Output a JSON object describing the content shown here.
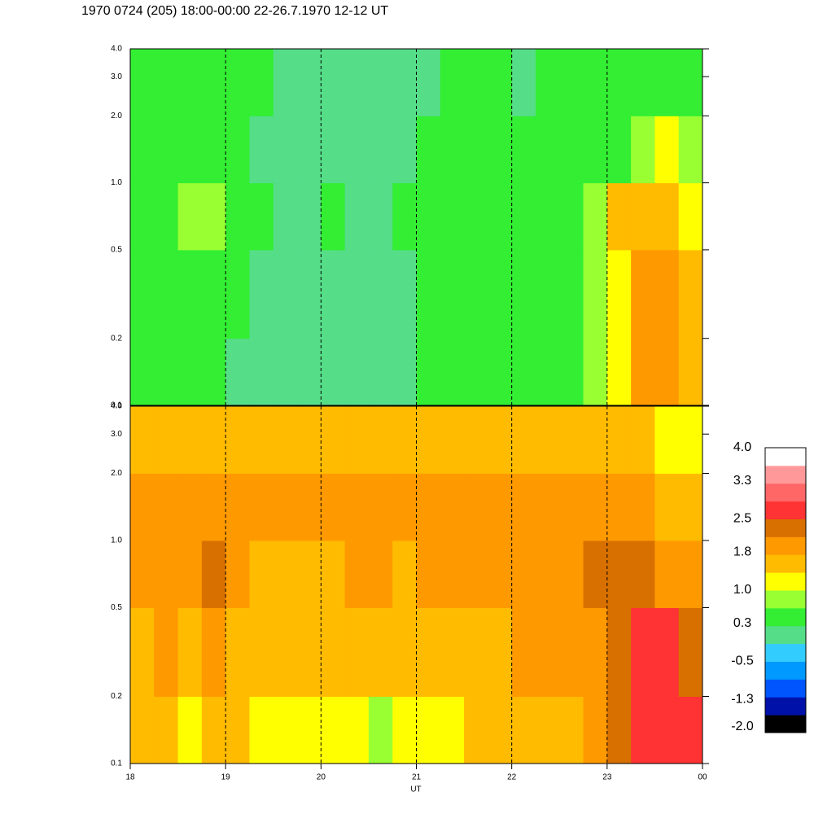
{
  "chart_data": {
    "type": "heatmap",
    "title": "1970 0724 (205) 18:00-00:00 22-26.7.1970  12-12 UT",
    "x_label": "UT",
    "xlim": [
      18,
      24
    ],
    "xticks": [
      18,
      19,
      20,
      21,
      22,
      23,
      {
        "value": 24,
        "label": "00"
      }
    ],
    "ylim": [
      0.1,
      4.0
    ],
    "log_y": true,
    "yticks": [
      0.1,
      0.2,
      0.5,
      {
        "value": 1,
        "label": "1.0"
      },
      {
        "value": 2,
        "label": "2.0"
      },
      {
        "value": 3,
        "label": "3.0"
      },
      {
        "value": 4,
        "label": "4.0"
      }
    ],
    "grid": true,
    "x_bins": [
      18,
      18.25,
      18.5,
      18.75,
      19,
      19.25,
      19.5,
      19.75,
      20,
      20.25,
      20.5,
      20.75,
      21,
      21.25,
      21.5,
      21.75,
      22,
      22.25,
      22.5,
      22.75,
      23,
      23.25,
      23.5,
      23.75,
      24
    ],
    "y_bins": [
      0.1,
      0.2,
      0.5,
      1,
      2,
      4
    ],
    "panels": [
      {
        "values": [
          [
            0.4,
            0.4,
            0.4,
            0.4,
            0.2,
            0.2,
            0.1,
            0.1,
            0.2,
            0.1,
            0.1,
            0.2,
            0.3,
            0.4,
            0.4,
            0.4,
            0.5,
            0.6,
            0.5,
            0.7,
            1.1,
            1.9,
            2.0,
            1.6
          ],
          [
            0.4,
            0.5,
            0.5,
            0.6,
            0.3,
            0.2,
            0.1,
            0.1,
            0.2,
            0.1,
            0.1,
            0.2,
            0.3,
            0.4,
            0.4,
            0.4,
            0.5,
            0.5,
            0.5,
            0.7,
            1.2,
            1.8,
            1.9,
            1.5
          ],
          [
            0.5,
            0.6,
            0.7,
            0.8,
            0.4,
            0.3,
            0.2,
            0.2,
            0.3,
            0.2,
            0.2,
            0.3,
            0.4,
            0.5,
            0.5,
            0.4,
            0.5,
            0.5,
            0.6,
            0.8,
            1.4,
            1.6,
            1.5,
            1.2
          ],
          [
            0.4,
            0.4,
            0.5,
            0.5,
            0.3,
            0.2,
            0.1,
            0.0,
            0.1,
            0.1,
            0.0,
            0.1,
            0.3,
            0.3,
            0.4,
            0.3,
            0.3,
            0.4,
            0.5,
            0.5,
            0.6,
            0.9,
            1.0,
            0.8
          ],
          [
            0.5,
            0.5,
            0.4,
            0.5,
            0.4,
            0.3,
            0.1,
            0.0,
            0.1,
            0.2,
            0.1,
            0.0,
            0.2,
            0.3,
            0.4,
            0.3,
            0.2,
            0.3,
            0.5,
            0.4,
            0.5,
            0.6,
            0.6,
            0.5
          ]
        ]
      },
      {
        "values": [
          [
            1.5,
            1.6,
            1.2,
            1.6,
            1.4,
            1.2,
            1.1,
            1.0,
            1.1,
            1.1,
            0.9,
            1.0,
            1.2,
            1.2,
            1.4,
            1.5,
            1.6,
            1.6,
            1.7,
            1.9,
            2.3,
            2.6,
            2.7,
            2.6
          ],
          [
            1.6,
            1.8,
            1.6,
            1.8,
            1.6,
            1.5,
            1.5,
            1.4,
            1.5,
            1.6,
            1.5,
            1.5,
            1.6,
            1.6,
            1.7,
            1.7,
            1.8,
            1.8,
            1.8,
            2.0,
            2.3,
            2.6,
            2.7,
            2.4
          ],
          [
            1.9,
            1.9,
            2.0,
            2.2,
            1.8,
            1.7,
            1.7,
            1.6,
            1.7,
            1.8,
            1.8,
            1.7,
            1.8,
            1.8,
            1.8,
            1.8,
            1.9,
            1.9,
            1.9,
            2.2,
            2.4,
            2.2,
            2.1,
            1.8
          ],
          [
            1.9,
            2.0,
            1.9,
            1.9,
            1.9,
            1.8,
            1.8,
            1.8,
            1.9,
            1.9,
            1.8,
            1.8,
            1.9,
            1.8,
            1.8,
            1.8,
            1.8,
            1.8,
            1.9,
            1.9,
            1.8,
            2.0,
            1.7,
            1.6
          ],
          [
            1.4,
            1.5,
            1.6,
            1.5,
            1.5,
            1.4,
            1.4,
            1.5,
            1.5,
            1.5,
            1.5,
            1.5,
            1.5,
            1.4,
            1.4,
            1.5,
            1.5,
            1.5,
            1.5,
            1.5,
            1.6,
            1.5,
            1.0,
            1.2
          ]
        ]
      }
    ],
    "colorbar": {
      "lim": [
        -2.0,
        4.0
      ],
      "colors": [
        "#000000",
        "#0011aa",
        "#0055ff",
        "#0099ff",
        "#33ccff",
        "#55dd88",
        "#33ee33",
        "#99ff33",
        "#ffff00",
        "#ffbb00",
        "#ff9900",
        "#d87000",
        "#ff3333",
        "#ff6666",
        "#ff9999",
        "#ffffff"
      ],
      "ticks": [
        {
          "value": -2,
          "label": "-2.0"
        },
        -1.3,
        {
          "value": -0.5,
          "label": "-0.5"
        },
        0.3,
        {
          "value": 1,
          "label": "1.0"
        },
        1.8,
        2.5,
        3.3,
        {
          "value": 4,
          "label": "4.0"
        }
      ]
    }
  }
}
